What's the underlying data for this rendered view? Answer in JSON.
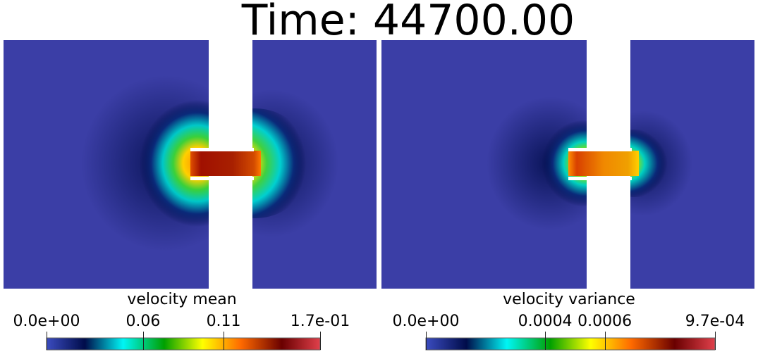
{
  "title": "Time: 44700.00",
  "colors": {
    "domain_background": "#3b3ea6",
    "channel_hot": "#b32a08",
    "gap": "#ffffff"
  },
  "colormap": [
    "#3b4cc0",
    "#000c4a",
    "#00f5f5",
    "#00a000",
    "#ffff00",
    "#ff6a00",
    "#6a0000",
    "#e0404b"
  ],
  "panels": [
    {
      "name": "velocity-mean",
      "colorbar": {
        "title": "velocity mean",
        "ticks": [
          {
            "label": "0.0e+00",
            "value": 0.0
          },
          {
            "label": "0.06",
            "value": 0.06
          },
          {
            "label": "0.11",
            "value": 0.11
          },
          {
            "label": "1.7e-01",
            "value": 0.17
          }
        ],
        "range": [
          0.0,
          0.17
        ]
      }
    },
    {
      "name": "velocity-variance",
      "colorbar": {
        "title": "velocity variance",
        "ticks": [
          {
            "label": "0.0e+00",
            "value": 0.0
          },
          {
            "label": "0.0004",
            "value": 0.0004
          },
          {
            "label": "0.0006",
            "value": 0.0006
          },
          {
            "label": "9.7e-04",
            "value": 0.00097
          }
        ],
        "range": [
          0.0,
          0.00097
        ]
      }
    }
  ]
}
